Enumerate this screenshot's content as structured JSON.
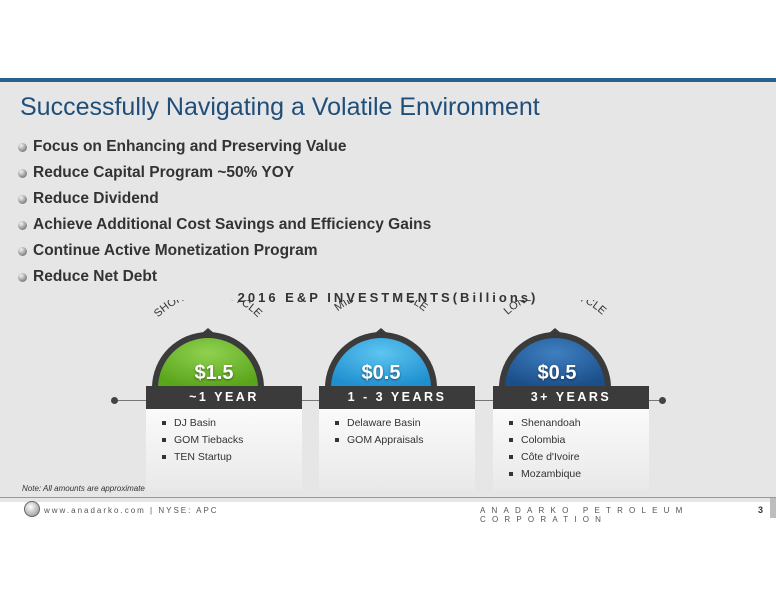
{
  "title": "Successfully Navigating a Volatile Environment",
  "bullets": [
    "Focus on Enhancing and Preserving Value",
    "Reduce Capital Program ~50% YOY",
    "Reduce Dividend",
    "Achieve Additional Cost Savings and Efficiency Gains",
    "Continue Active Monetization Program",
    "Reduce Net Debt"
  ],
  "section_heading": "2016 E&P INVESTMENTS(Billions)",
  "cycles": [
    {
      "arc_label": "SHORT CASH CYCLE",
      "amount": "$1.5",
      "duration": "~1 YEAR",
      "color": "#5aa51c",
      "items": [
        "DJ Basin",
        "GOM Tiebacks",
        "TEN Startup"
      ]
    },
    {
      "arc_label": "MID CASH CYCLE",
      "amount": "$0.5",
      "duration": "1 - 3 YEARS",
      "color": "#1f8fcf",
      "items": [
        "Delaware Basin",
        "GOM Appraisals"
      ]
    },
    {
      "arc_label": "LONG CASH CYCLE",
      "amount": "$0.5",
      "duration": "3+ YEARS",
      "color": "#1b4f8a",
      "items": [
        "Shenandoah",
        "Colombia",
        "Côte d'Ivoire",
        "Mozambique"
      ]
    }
  ],
  "note": "Note: All amounts are approximate",
  "footer": {
    "left": "www.anadarko.com | NYSE: APC",
    "right": "ANADARKO PETROLEUM CORPORATION",
    "page": "3"
  }
}
